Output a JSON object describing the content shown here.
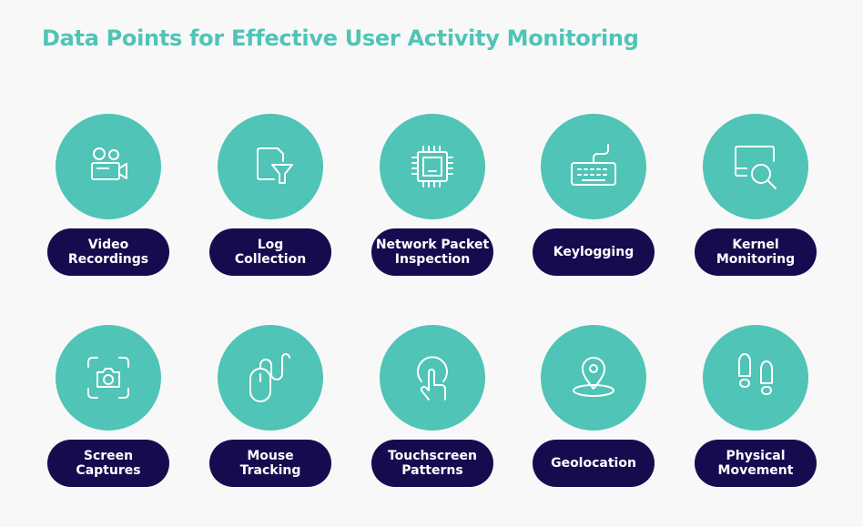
{
  "title": "Data Points for Effective User Activity Monitoring",
  "colors": {
    "teal": "#4fc4b7",
    "navy": "#170b50",
    "background": "#f8f8f8"
  },
  "items": [
    {
      "label": "Video\nRecordings",
      "icon": "video-camera-icon"
    },
    {
      "label": "Log\nCollection",
      "icon": "file-filter-icon"
    },
    {
      "label": "Network Packet\nInspection",
      "icon": "chip-icon"
    },
    {
      "label": "Keylogging",
      "icon": "keyboard-icon"
    },
    {
      "label": "Kernel\nMonitoring",
      "icon": "monitor-search-icon"
    },
    {
      "label": "Screen\nCaptures",
      "icon": "screenshot-camera-icon"
    },
    {
      "label": "Mouse\nTracking",
      "icon": "mouse-icon"
    },
    {
      "label": "Touchscreen\nPatterns",
      "icon": "touch-icon"
    },
    {
      "label": "Geolocation",
      "icon": "location-pin-icon"
    },
    {
      "label": "Physical\nMovement",
      "icon": "footprints-icon"
    }
  ]
}
